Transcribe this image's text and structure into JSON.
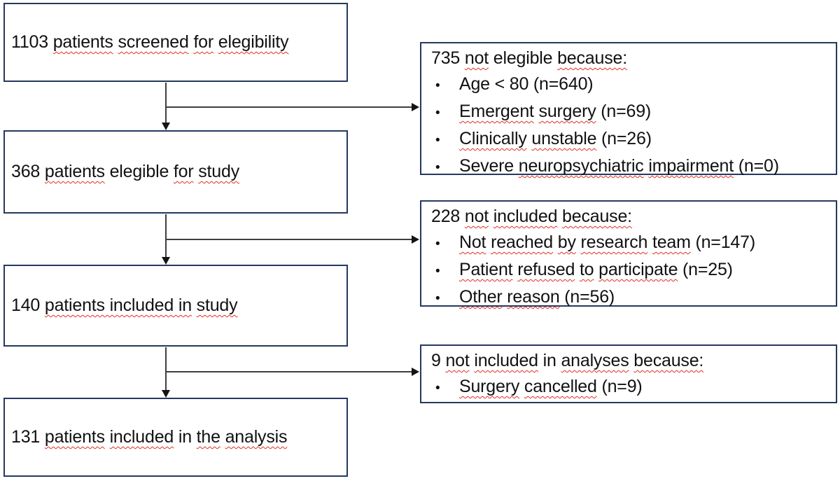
{
  "diagram": {
    "type": "patient-flow-diagram",
    "bullet_glyph": "•",
    "colors": {
      "box_border": "#25395f",
      "connector_line": "#3f3f3f",
      "arrowhead": "#141414",
      "text": "#111111",
      "squiggle": "#e0301e",
      "background": "#ffffff"
    },
    "main_boxes": [
      {
        "label": "1103 patients screened for elegibility",
        "segments": [
          {
            "t": "1103 "
          },
          {
            "t": "patients",
            "q": true
          },
          {
            "t": " "
          },
          {
            "t": "screened",
            "q": true
          },
          {
            "t": " "
          },
          {
            "t": "for",
            "q": true
          },
          {
            "t": " "
          },
          {
            "t": "elegibility",
            "q": true
          }
        ]
      },
      {
        "label": "368 patients elegible for study",
        "segments": [
          {
            "t": "368 "
          },
          {
            "t": "patients",
            "q": true
          },
          {
            "t": " elegible "
          },
          {
            "t": "for",
            "q": true
          },
          {
            "t": " "
          },
          {
            "t": "study",
            "q": true
          }
        ]
      },
      {
        "label": "140 patients included in study",
        "segments": [
          {
            "t": "140 "
          },
          {
            "t": "patients included in",
            "q": true
          },
          {
            "t": " "
          },
          {
            "t": "study",
            "q": true
          }
        ]
      },
      {
        "label": "131 patients included in the analysis",
        "segments": [
          {
            "t": "131 "
          },
          {
            "t": "patients",
            "q": true
          },
          {
            "t": " "
          },
          {
            "t": "included",
            "q": true
          },
          {
            "t": " in "
          },
          {
            "t": "the",
            "q": true
          },
          {
            "t": " "
          },
          {
            "t": "analysis",
            "q": true
          }
        ]
      }
    ],
    "side_boxes": [
      {
        "heading_label": "735 not elegible because:",
        "heading_segments": [
          {
            "t": "735 "
          },
          {
            "t": "not",
            "q": true
          },
          {
            "t": " elegible "
          },
          {
            "t": "because:",
            "q": true
          }
        ],
        "bullets": [
          {
            "label": "Age < 80 (n=640)",
            "segments": [
              {
                "t": "Age < 80 (n=640)"
              }
            ]
          },
          {
            "label": "Emergent surgery (n=69)",
            "segments": [
              {
                "t": "Emergent",
                "q": true
              },
              {
                "t": " "
              },
              {
                "t": "surgery",
                "q": true
              },
              {
                "t": " (n=69)"
              }
            ]
          },
          {
            "label": "Clinically unstable (n=26)",
            "segments": [
              {
                "t": "Clinically",
                "q": true
              },
              {
                "t": " "
              },
              {
                "t": "unstable",
                "q": true
              },
              {
                "t": " (n=26)"
              }
            ]
          },
          {
            "label": "Severe neuropsychiatric impairment (n=0)",
            "segments": [
              {
                "t": "Severe "
              },
              {
                "t": "neuropsychiatric",
                "q": true
              },
              {
                "t": " "
              },
              {
                "t": "impairment",
                "q": true
              },
              {
                "t": " (n=0)"
              }
            ]
          }
        ]
      },
      {
        "heading_label": "228 not included because:",
        "heading_segments": [
          {
            "t": "228 "
          },
          {
            "t": "not",
            "q": true
          },
          {
            "t": " "
          },
          {
            "t": "included",
            "q": true
          },
          {
            "t": " "
          },
          {
            "t": "because:",
            "q": true
          }
        ],
        "bullets": [
          {
            "label": "Not reached by research team (n=147)",
            "segments": [
              {
                "t": "Not",
                "q": true
              },
              {
                "t": " "
              },
              {
                "t": "reached",
                "q": true
              },
              {
                "t": " "
              },
              {
                "t": "by",
                "q": true
              },
              {
                "t": " "
              },
              {
                "t": "research",
                "q": true
              },
              {
                "t": " "
              },
              {
                "t": "team",
                "q": true
              },
              {
                "t": " (n=147)"
              }
            ]
          },
          {
            "label": "Patient refused to participate (n=25)",
            "segments": [
              {
                "t": "Patient",
                "q": true
              },
              {
                "t": " "
              },
              {
                "t": "refused",
                "q": true
              },
              {
                "t": " "
              },
              {
                "t": "to",
                "q": true
              },
              {
                "t": " "
              },
              {
                "t": "participate",
                "q": true
              },
              {
                "t": " (n=25)"
              }
            ]
          },
          {
            "label": "Other reason (n=56)",
            "segments": [
              {
                "t": "Other",
                "q": true
              },
              {
                "t": " "
              },
              {
                "t": "reason",
                "q": true
              },
              {
                "t": " (n=56)"
              }
            ]
          }
        ]
      },
      {
        "heading_label": "9 not included in analyses because:",
        "heading_segments": [
          {
            "t": "9 "
          },
          {
            "t": "not",
            "q": true
          },
          {
            "t": " "
          },
          {
            "t": "included",
            "q": true
          },
          {
            "t": " in "
          },
          {
            "t": "analyses",
            "q": true
          },
          {
            "t": " "
          },
          {
            "t": "because:",
            "q": true
          }
        ],
        "bullets": [
          {
            "label": "Surgery cancelled (n=9)",
            "segments": [
              {
                "t": "Surgery",
                "q": true
              },
              {
                "t": " "
              },
              {
                "t": "cancelled",
                "q": true
              },
              {
                "t": " (n=9)"
              }
            ]
          }
        ]
      }
    ]
  }
}
